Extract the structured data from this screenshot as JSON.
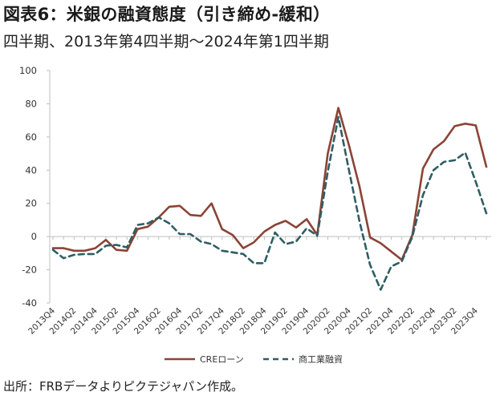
{
  "title": "図表6：米銀の融資態度（引き締め-緩和）",
  "subtitle": "四半期、2013年第4四半期～2024年第1四半期",
  "source": "出所：FRBデータよりピクテジャパン作成。",
  "chart_data": {
    "type": "line",
    "ylim": [
      -40,
      100
    ],
    "yticks": [
      -40,
      -20,
      0,
      20,
      40,
      60,
      80,
      100
    ],
    "x": [
      "2013Q4",
      "2014Q1",
      "2014Q2",
      "2014Q3",
      "2014Q4",
      "2015Q1",
      "2015Q2",
      "2015Q3",
      "2015Q4",
      "2016Q1",
      "2016Q2",
      "2016Q3",
      "2016Q4",
      "2017Q1",
      "2017Q2",
      "2017Q3",
      "2017Q4",
      "2018Q1",
      "2018Q2",
      "2018Q3",
      "2018Q4",
      "2019Q1",
      "2019Q2",
      "2019Q3",
      "2019Q4",
      "2020Q1",
      "2020Q2",
      "2020Q3",
      "2020Q4",
      "2021Q1",
      "2021Q2",
      "2021Q3",
      "2021Q4",
      "2022Q1",
      "2022Q2",
      "2022Q3",
      "2022Q4",
      "2023Q1",
      "2023Q2",
      "2023Q3",
      "2023Q4",
      "2024Q1"
    ],
    "x_tick_labels": [
      "2013Q4",
      "2014Q2",
      "2014Q4",
      "2015Q2",
      "2015Q4",
      "2016Q2",
      "2016Q4",
      "2017Q2",
      "2017Q4",
      "2018Q2",
      "2018Q4",
      "2019Q2",
      "2019Q4",
      "2020Q2",
      "2020Q4",
      "2021Q2",
      "2021Q4",
      "2022Q2",
      "2022Q4",
      "2023Q2",
      "2023Q4"
    ],
    "grid": false,
    "legend_position": "bottom",
    "series": [
      {
        "name": "CREローン",
        "color": "#8B4336",
        "style": "solid",
        "values": [
          -7,
          -7,
          -8.5,
          -8.5,
          -7,
          -2,
          -8,
          -8.5,
          4.5,
          6,
          11.5,
          18,
          18.5,
          13,
          12.5,
          20,
          4.5,
          1,
          -7,
          -3.5,
          3,
          7,
          9.5,
          5.5,
          10.5,
          1,
          50,
          77.5,
          55,
          30,
          -0.5,
          -4,
          -9,
          -14,
          1,
          41,
          52.5,
          57.5,
          66.5,
          68,
          67,
          42
        ]
      },
      {
        "name": "商工業融資",
        "color": "#2E5E63",
        "style": "dashed",
        "values": [
          -8,
          -13,
          -11,
          -10.5,
          -10.5,
          -5.5,
          -5,
          -6.5,
          7,
          8,
          11.5,
          8,
          1.5,
          1.5,
          -3,
          -4.5,
          -8.5,
          -9.5,
          -10.5,
          -16,
          -16,
          2.5,
          -4.5,
          -3,
          5,
          0.5,
          39,
          72,
          40,
          9,
          -17,
          -32,
          -18,
          -15,
          0,
          25,
          40,
          45,
          46,
          50.5,
          33,
          14
        ]
      }
    ]
  }
}
